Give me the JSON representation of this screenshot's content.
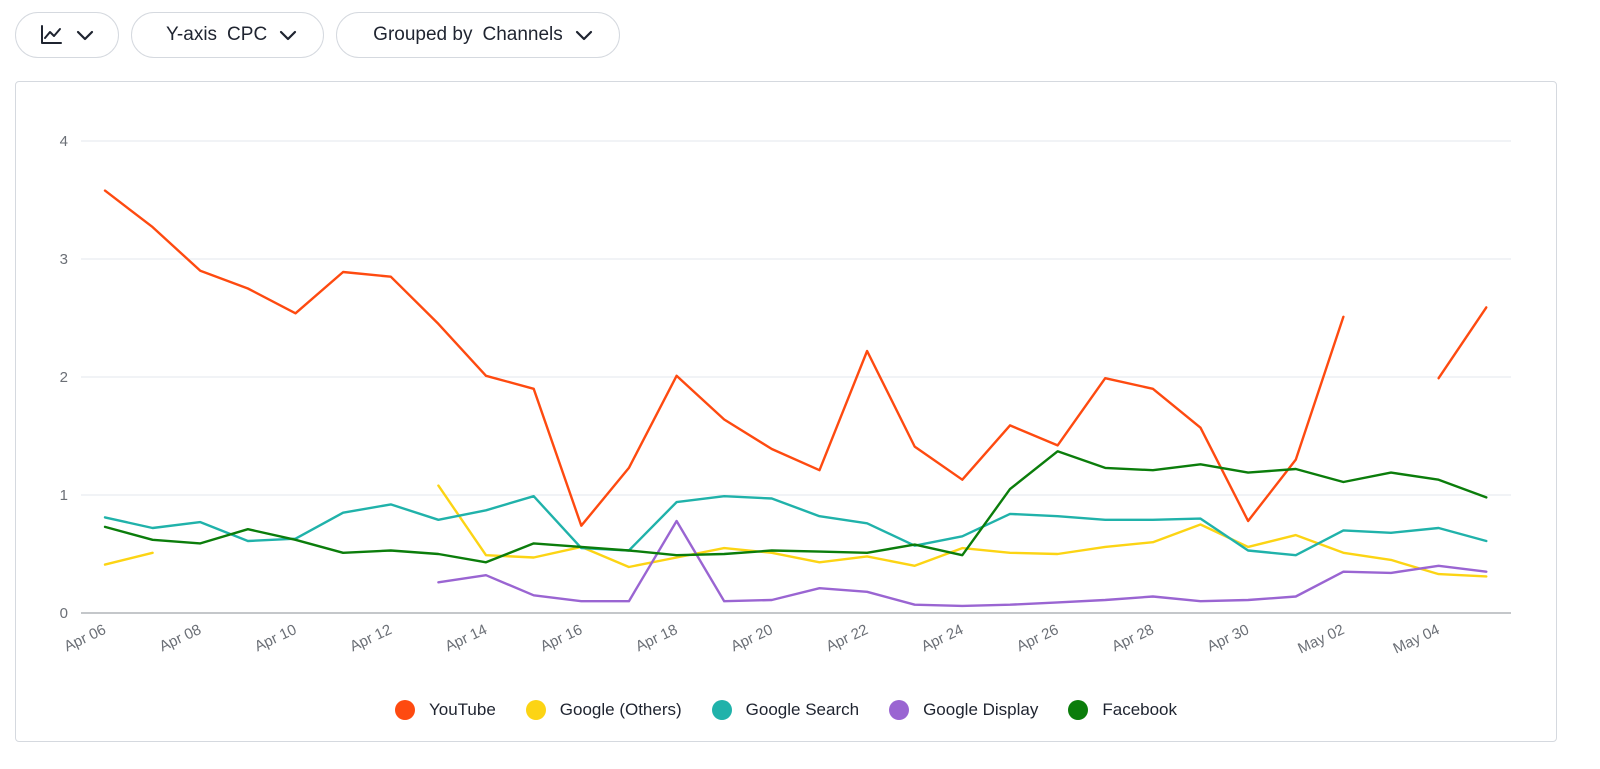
{
  "toolbar": {
    "chart_type_icon": "line-chart-icon",
    "yaxis_prefix": "Y-axis",
    "yaxis_value": "CPC",
    "grouped_prefix": "Grouped by",
    "grouped_value": "Channels"
  },
  "chart_data": {
    "type": "line",
    "title": "",
    "xlabel": "",
    "ylabel": "CPC",
    "ylim": [
      0,
      4
    ],
    "yticks": [
      "0",
      "1",
      "2",
      "3",
      "4"
    ],
    "grid": true,
    "legend_position": "bottom",
    "x": [
      "Apr 06",
      "Apr 07",
      "Apr 08",
      "Apr 09",
      "Apr 10",
      "Apr 11",
      "Apr 12",
      "Apr 13",
      "Apr 14",
      "Apr 15",
      "Apr 16",
      "Apr 17",
      "Apr 18",
      "Apr 19",
      "Apr 20",
      "Apr 21",
      "Apr 22",
      "Apr 23",
      "Apr 24",
      "Apr 25",
      "Apr 26",
      "Apr 27",
      "Apr 28",
      "Apr 29",
      "Apr 30",
      "May 01",
      "May 02",
      "May 03",
      "May 04",
      "May 05"
    ],
    "xtick_labels": [
      "Apr 06",
      "Apr 08",
      "Apr 10",
      "Apr 12",
      "Apr 14",
      "Apr 16",
      "Apr 18",
      "Apr 20",
      "Apr 22",
      "Apr 24",
      "Apr 26",
      "Apr 28",
      "Apr 30",
      "May 02",
      "May 04"
    ],
    "series": [
      {
        "name": "YouTube",
        "color": "#fe4a10",
        "values": [
          3.58,
          3.27,
          2.9,
          2.75,
          2.54,
          2.89,
          2.85,
          2.45,
          2.01,
          1.9,
          0.74,
          1.23,
          2.01,
          1.64,
          1.39,
          1.21,
          2.22,
          1.41,
          1.13,
          1.59,
          1.42,
          1.99,
          1.9,
          1.57,
          0.78,
          1.3,
          2.51,
          null,
          1.99,
          2.59
        ]
      },
      {
        "name": "Google (Others)",
        "color": "#fcd414",
        "values": [
          0.41,
          0.51,
          null,
          null,
          null,
          null,
          null,
          1.08,
          0.49,
          0.47,
          0.56,
          0.39,
          0.47,
          0.55,
          0.51,
          0.43,
          0.48,
          0.4,
          0.55,
          0.51,
          0.5,
          0.56,
          0.6,
          0.75,
          0.56,
          0.66,
          0.51,
          0.45,
          0.33,
          0.31
        ]
      },
      {
        "name": "Google Search",
        "color": "#20b2aa",
        "values": [
          0.81,
          0.72,
          0.77,
          0.61,
          0.63,
          0.85,
          0.92,
          0.79,
          0.87,
          0.99,
          0.55,
          0.53,
          0.94,
          0.99,
          0.97,
          0.82,
          0.76,
          0.57,
          0.65,
          0.84,
          0.82,
          0.79,
          0.79,
          0.8,
          0.53,
          0.49,
          0.7,
          0.68,
          0.72,
          0.61
        ]
      },
      {
        "name": "Google Display",
        "color": "#9a65d2",
        "values": [
          null,
          null,
          null,
          null,
          null,
          null,
          null,
          0.26,
          0.32,
          0.15,
          0.1,
          0.1,
          0.78,
          0.1,
          0.11,
          0.21,
          0.18,
          0.07,
          0.06,
          0.07,
          0.09,
          0.11,
          0.14,
          0.1,
          0.11,
          0.14,
          0.35,
          0.34,
          0.4,
          0.35
        ]
      },
      {
        "name": "Facebook",
        "color": "#0b7d0b",
        "values": [
          0.73,
          0.62,
          0.59,
          0.71,
          0.62,
          0.51,
          0.53,
          0.5,
          0.43,
          0.59,
          0.56,
          0.53,
          0.49,
          0.5,
          0.53,
          0.52,
          0.51,
          0.58,
          0.49,
          1.05,
          1.37,
          1.23,
          1.21,
          1.26,
          1.19,
          1.22,
          1.11,
          1.19,
          1.13,
          0.98
        ]
      }
    ]
  }
}
